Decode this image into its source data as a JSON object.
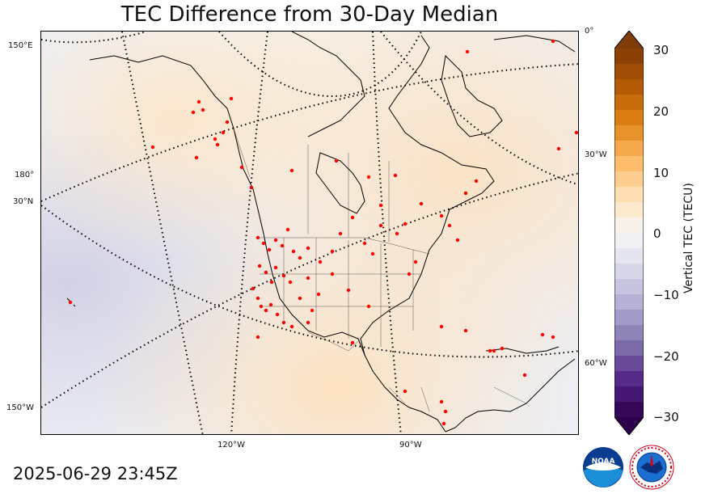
{
  "title": "TEC Difference from 30-Day Median",
  "timestamp": "2025-06-29 23:45Z",
  "lon_labels": [
    "150°E",
    "180°",
    "120°W",
    "90°W",
    "150°W"
  ],
  "lat_labels": [
    "30°N",
    "0°",
    "30°W",
    "60°W"
  ],
  "colorbar": {
    "label": "Vertical TEC (TECU)",
    "ticks": [
      "30",
      "20",
      "10",
      "0",
      "−10",
      "−20",
      "−30"
    ],
    "range": [
      -30,
      30
    ],
    "low_color": "#2d004b",
    "mid_color": "#f7f7f7",
    "high_color": "#7f3b08"
  },
  "logos": {
    "noaa": "NOAA",
    "nws": "NATIONAL WEATHER SERVICE"
  },
  "colors": {
    "station_dot": "#ff0000",
    "frame": "#000000"
  }
}
